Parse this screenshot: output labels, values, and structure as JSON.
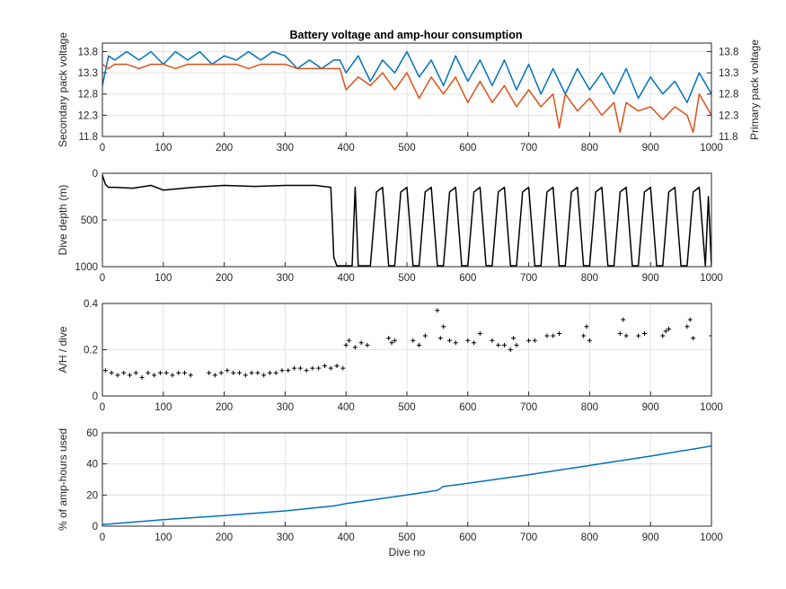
{
  "title": "Battery voltage and amp-hour consumption",
  "colors": {
    "blue": "#0072BD",
    "orange": "#D95319",
    "black": "#000000"
  },
  "chart_data": [
    {
      "type": "line",
      "title": "Battery voltage and amp-hour consumption",
      "xlabel": "",
      "ylabel": "Secondary pack voltage",
      "ylabel_right": "Primary pack voltage",
      "xlim": [
        0,
        1000
      ],
      "ylim": [
        11.8,
        14.0
      ],
      "ylim_right": [
        11.8,
        14.0
      ],
      "xticks": [
        "0",
        "100",
        "200",
        "300",
        "400",
        "500",
        "600",
        "700",
        "800",
        "900",
        "1000"
      ],
      "yticks": [
        "11.8",
        "12.3",
        "12.8",
        "13.3",
        "13.8"
      ],
      "yticks_right": [
        "11.8",
        "12.3",
        "12.8",
        "13.3",
        "13.8"
      ],
      "grid": true,
      "series": [
        {
          "axis": "left",
          "color": "#0072BD",
          "x": [
            0,
            10,
            20,
            40,
            60,
            80,
            100,
            120,
            140,
            160,
            180,
            200,
            220,
            240,
            260,
            280,
            300,
            320,
            340,
            360,
            380,
            390,
            400,
            420,
            440,
            460,
            480,
            500,
            520,
            540,
            560,
            580,
            600,
            620,
            640,
            660,
            680,
            700,
            720,
            740,
            760,
            780,
            800,
            820,
            840,
            860,
            880,
            900,
            920,
            940,
            960,
            980,
            1000
          ],
          "y": [
            13.0,
            13.7,
            13.6,
            13.8,
            13.6,
            13.8,
            13.5,
            13.8,
            13.6,
            13.8,
            13.5,
            13.7,
            13.6,
            13.8,
            13.6,
            13.8,
            13.7,
            13.4,
            13.6,
            13.4,
            13.6,
            13.6,
            13.3,
            13.7,
            13.1,
            13.6,
            13.3,
            13.8,
            13.2,
            13.6,
            13.0,
            13.7,
            13.1,
            13.6,
            13.0,
            13.6,
            12.9,
            13.5,
            12.8,
            13.4,
            12.8,
            13.4,
            12.9,
            13.3,
            12.8,
            13.4,
            12.7,
            13.2,
            12.8,
            13.1,
            12.6,
            13.3,
            12.8
          ]
        },
        {
          "axis": "right",
          "color": "#D95319",
          "x": [
            0,
            10,
            20,
            40,
            60,
            80,
            100,
            120,
            140,
            160,
            180,
            200,
            220,
            240,
            260,
            280,
            300,
            320,
            340,
            360,
            380,
            390,
            400,
            420,
            440,
            460,
            480,
            500,
            520,
            540,
            560,
            580,
            600,
            620,
            640,
            660,
            680,
            700,
            720,
            740,
            750,
            760,
            780,
            800,
            820,
            840,
            850,
            860,
            880,
            900,
            920,
            940,
            960,
            970,
            980,
            1000
          ],
          "y": [
            13.5,
            13.4,
            13.5,
            13.5,
            13.4,
            13.5,
            13.5,
            13.4,
            13.5,
            13.5,
            13.5,
            13.5,
            13.5,
            13.4,
            13.5,
            13.5,
            13.5,
            13.4,
            13.4,
            13.4,
            13.4,
            13.4,
            12.9,
            13.2,
            13.0,
            13.3,
            12.9,
            13.3,
            12.7,
            13.2,
            12.8,
            13.2,
            12.6,
            13.1,
            12.6,
            13.0,
            12.5,
            12.9,
            12.5,
            12.8,
            12.0,
            12.8,
            12.4,
            12.7,
            12.3,
            12.6,
            11.9,
            12.6,
            12.4,
            12.5,
            12.2,
            12.5,
            12.3,
            11.9,
            12.8,
            12.3
          ]
        }
      ]
    },
    {
      "type": "line",
      "xlabel": "",
      "ylabel": "Dive depth (m)",
      "xlim": [
        0,
        1000
      ],
      "ylim": [
        1000,
        0
      ],
      "y_reversed": true,
      "xticks": [
        "0",
        "100",
        "200",
        "300",
        "400",
        "500",
        "600",
        "700",
        "800",
        "900",
        "1000"
      ],
      "yticks": [
        "0",
        "500",
        "1000"
      ],
      "grid": true,
      "series": [
        {
          "color": "#000000",
          "x": [
            0,
            5,
            10,
            20,
            50,
            80,
            100,
            150,
            200,
            250,
            300,
            350,
            375,
            380,
            385,
            395,
            410,
            415,
            420,
            425,
            440,
            450,
            460,
            470,
            480,
            490,
            500,
            510,
            520,
            530,
            540,
            550,
            560,
            570,
            580,
            590,
            600,
            610,
            620,
            630,
            640,
            650,
            660,
            670,
            680,
            690,
            700,
            710,
            720,
            730,
            740,
            750,
            760,
            770,
            780,
            790,
            800,
            810,
            820,
            830,
            840,
            850,
            860,
            870,
            880,
            890,
            900,
            910,
            920,
            930,
            940,
            950,
            960,
            970,
            980,
            990,
            995,
            1000
          ],
          "y": [
            20,
            120,
            150,
            150,
            160,
            130,
            180,
            150,
            130,
            140,
            130,
            130,
            150,
            900,
            990,
            990,
            990,
            150,
            990,
            990,
            990,
            200,
            150,
            990,
            990,
            200,
            150,
            990,
            990,
            200,
            150,
            990,
            990,
            200,
            150,
            990,
            990,
            200,
            150,
            990,
            990,
            200,
            150,
            990,
            990,
            200,
            150,
            990,
            990,
            200,
            150,
            990,
            990,
            200,
            150,
            990,
            990,
            200,
            150,
            990,
            990,
            200,
            150,
            990,
            990,
            200,
            150,
            990,
            990,
            200,
            150,
            990,
            990,
            200,
            150,
            990,
            250,
            990
          ]
        }
      ]
    },
    {
      "type": "scatter",
      "xlabel": "",
      "ylabel": "A/H / dive",
      "xlim": [
        0,
        1000
      ],
      "ylim": [
        0,
        0.4
      ],
      "xticks": [
        "0",
        "100",
        "200",
        "300",
        "400",
        "500",
        "600",
        "700",
        "800",
        "900",
        "1000"
      ],
      "yticks": [
        "0",
        "0.2",
        "0.4"
      ],
      "grid": true,
      "series": [
        {
          "color": "#000000",
          "x": [
            5,
            15,
            25,
            35,
            45,
            55,
            65,
            75,
            85,
            95,
            105,
            115,
            125,
            135,
            145,
            175,
            185,
            195,
            205,
            215,
            225,
            235,
            245,
            255,
            265,
            275,
            285,
            295,
            305,
            315,
            325,
            335,
            345,
            355,
            365,
            375,
            385,
            395,
            400,
            405,
            415,
            425,
            435,
            470,
            475,
            480,
            510,
            520,
            530,
            550,
            555,
            560,
            570,
            580,
            600,
            610,
            620,
            640,
            650,
            660,
            670,
            675,
            680,
            700,
            710,
            730,
            740,
            750,
            790,
            795,
            800,
            850,
            855,
            860,
            880,
            890,
            920,
            925,
            930,
            960,
            965,
            970,
            1000
          ],
          "y": [
            0.11,
            0.1,
            0.09,
            0.1,
            0.09,
            0.1,
            0.08,
            0.1,
            0.09,
            0.1,
            0.1,
            0.09,
            0.1,
            0.1,
            0.09,
            0.1,
            0.09,
            0.1,
            0.11,
            0.1,
            0.1,
            0.09,
            0.1,
            0.1,
            0.09,
            0.1,
            0.1,
            0.11,
            0.11,
            0.12,
            0.12,
            0.11,
            0.12,
            0.12,
            0.13,
            0.12,
            0.13,
            0.12,
            0.22,
            0.24,
            0.21,
            0.23,
            0.22,
            0.25,
            0.23,
            0.24,
            0.24,
            0.22,
            0.26,
            0.37,
            0.25,
            0.3,
            0.24,
            0.23,
            0.24,
            0.23,
            0.27,
            0.24,
            0.22,
            0.22,
            0.2,
            0.25,
            0.22,
            0.24,
            0.24,
            0.26,
            0.26,
            0.27,
            0.26,
            0.3,
            0.24,
            0.27,
            0.33,
            0.26,
            0.26,
            0.27,
            0.26,
            0.28,
            0.29,
            0.3,
            0.33,
            0.25,
            0.26
          ]
        }
      ]
    },
    {
      "type": "line",
      "xlabel": "Dive no",
      "ylabel": "% of amp-hours used",
      "xlim": [
        0,
        1000
      ],
      "ylim": [
        0,
        60
      ],
      "xticks": [
        "0",
        "100",
        "200",
        "300",
        "400",
        "500",
        "600",
        "700",
        "800",
        "900",
        "1000"
      ],
      "yticks": [
        "0",
        "20",
        "40",
        "60"
      ],
      "grid": true,
      "series": [
        {
          "color": "#0072BD",
          "x": [
            0,
            100,
            200,
            300,
            380,
            400,
            500,
            550,
            560,
            600,
            700,
            800,
            900,
            1000
          ],
          "y": [
            1,
            4.2,
            6.8,
            9.8,
            13,
            14.5,
            20,
            23,
            25.5,
            27.5,
            33,
            39,
            45,
            51.5
          ]
        }
      ]
    }
  ]
}
